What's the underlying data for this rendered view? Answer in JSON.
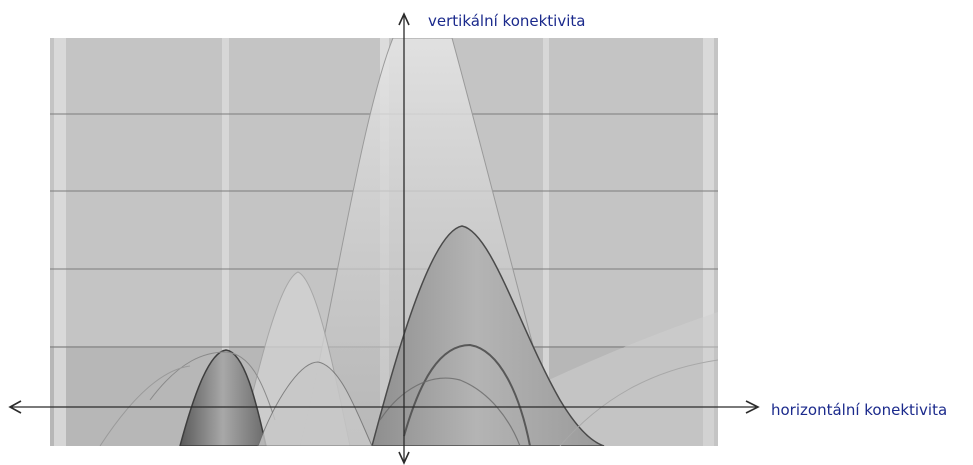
{
  "axes": {
    "vertical_label": "vertikální konektivita",
    "horizontal_label": "horizontální konektivita"
  },
  "colors": {
    "label": "#1b2a8c",
    "axis": "#2b2b2b",
    "panel": "#c4c4c4",
    "panel_stripe": "#e2e2e2",
    "surface_light": "#d6d6d6",
    "surface_dark": "#5e5e5e"
  }
}
